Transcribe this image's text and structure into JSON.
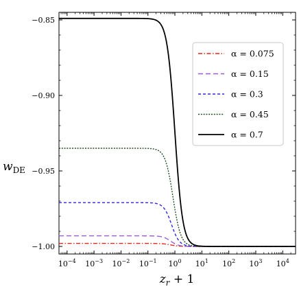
{
  "chart_data": {
    "type": "line",
    "title": "",
    "xlabel": "z_r + 1",
    "ylabel": "w_DE",
    "xscale": "log",
    "xlim": [
      5e-05,
      30000
    ],
    "ylim": [
      -1.005,
      -0.845
    ],
    "x_ticks": [
      {
        "value": 0.0001,
        "base": "10",
        "exp": "−4"
      },
      {
        "value": 0.001,
        "base": "10",
        "exp": "−3"
      },
      {
        "value": 0.01,
        "base": "10",
        "exp": "−2"
      },
      {
        "value": 0.1,
        "base": "10",
        "exp": "−1"
      },
      {
        "value": 1,
        "base": "10",
        "exp": "0"
      },
      {
        "value": 10,
        "base": "10",
        "exp": "1"
      },
      {
        "value": 100,
        "base": "10",
        "exp": "2"
      },
      {
        "value": 1000,
        "base": "10",
        "exp": "3"
      },
      {
        "value": 10000,
        "base": "10",
        "exp": "4"
      }
    ],
    "y_ticks": [
      {
        "value": -0.85,
        "label": "−0.85"
      },
      {
        "value": -0.9,
        "label": "−0.90"
      },
      {
        "value": -0.95,
        "label": "−0.95"
      },
      {
        "value": -1.0,
        "label": "−1.00"
      }
    ],
    "grid": false,
    "legend_position": "top-right",
    "series": [
      {
        "name": "α = 0.075",
        "color": "#e8261c",
        "dash": "dashdot",
        "plateau": -0.998,
        "transition": 0.7
      },
      {
        "name": "α = 0.15",
        "color": "#9b59d6",
        "dash": "dashed",
        "plateau": -0.993,
        "transition": 0.7
      },
      {
        "name": "α = 0.3",
        "color": "#2828e0",
        "dash": "dashed-short",
        "plateau": -0.971,
        "transition": 0.75
      },
      {
        "name": "α = 0.45",
        "color": "#1f4d1f",
        "dash": "dotted",
        "plateau": -0.935,
        "transition": 0.85
      },
      {
        "name": "α = 0.7",
        "color": "#000000",
        "dash": "solid",
        "plateau": -0.849,
        "transition": 1.0
      }
    ]
  }
}
